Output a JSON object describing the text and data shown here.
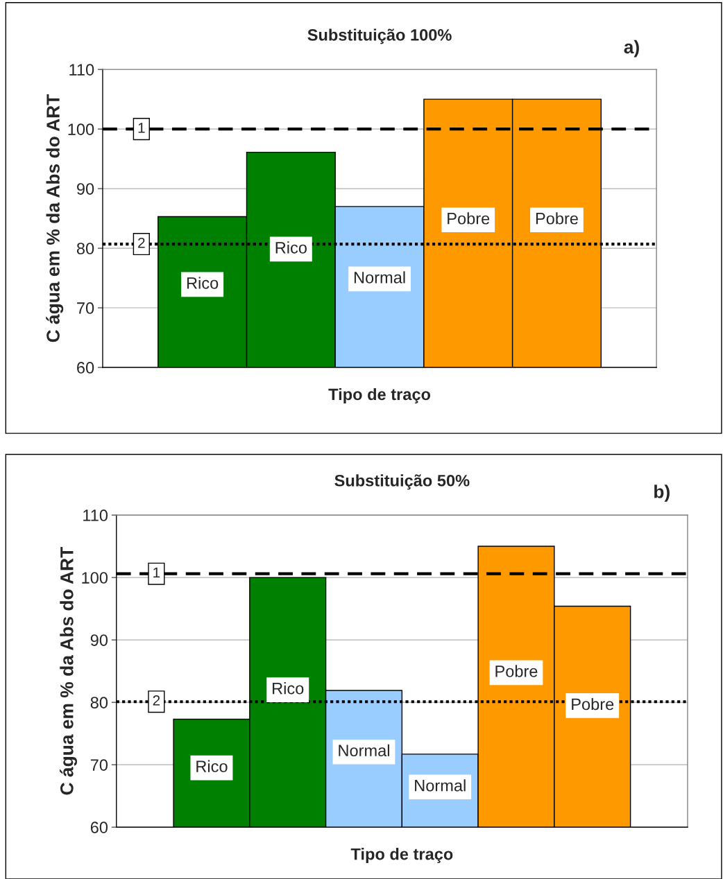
{
  "chart_data": [
    {
      "type": "bar",
      "title": "Substituição 100%",
      "xlabel": "Tipo de traço",
      "ylabel": "C água em % da Abs do ART",
      "categories": [
        null
      ],
      "series": [
        {
          "name": "Rico",
          "color": "#008000",
          "values": [
            85.3
          ]
        },
        {
          "name": "Rico",
          "color": "#008000",
          "values": [
            96.1
          ]
        },
        {
          "name": "Normal",
          "color": "#99ccff",
          "values": [
            87
          ]
        },
        {
          "name": "Pobre",
          "color": "#ff9900",
          "values": [
            105
          ]
        },
        {
          "name": "Pobre",
          "color": "#ff9900",
          "values": [
            105
          ]
        }
      ],
      "ylim": [
        60,
        110
      ],
      "yticks": [
        60,
        70,
        80,
        90,
        100,
        110
      ],
      "grid": "y",
      "legend": false,
      "ref_lines": [
        {
          "axis": "y",
          "value": 100,
          "line_style": "dashed",
          "color": "#000000"
        },
        {
          "axis": "y",
          "value": 80.7,
          "line_style": "dotted",
          "color": "#000000"
        }
      ],
      "annotations": [
        "a)",
        {
          "text": "1",
          "y": 100
        },
        {
          "text": "2",
          "y": 80.7
        }
      ]
    },
    {
      "type": "bar",
      "title": "Substituição 50%",
      "xlabel": "Tipo de traço",
      "ylabel": "C água em % da Abs do ART",
      "categories": [
        null
      ],
      "series": [
        {
          "name": "Rico",
          "color": "#008000",
          "values": [
            77.3
          ]
        },
        {
          "name": "Rico",
          "color": "#008000",
          "values": [
            100
          ]
        },
        {
          "name": "Normal",
          "color": "#99ccff",
          "values": [
            81.9
          ]
        },
        {
          "name": "Normal",
          "color": "#99ccff",
          "values": [
            71.7
          ]
        },
        {
          "name": "Pobre",
          "color": "#ff9900",
          "values": [
            105
          ]
        },
        {
          "name": "Pobre",
          "color": "#ff9900",
          "values": [
            95.4
          ]
        }
      ],
      "ylim": [
        60,
        110
      ],
      "yticks": [
        60,
        70,
        80,
        90,
        100,
        110
      ],
      "grid": "y",
      "legend": false,
      "ref_lines": [
        {
          "axis": "y",
          "value": 100.6,
          "line_style": "dashed",
          "color": "#000000"
        },
        {
          "axis": "y",
          "value": 80.1,
          "line_style": "dotted",
          "color": "#000000"
        }
      ],
      "annotations": [
        "b)",
        {
          "text": "1",
          "y": 100.6
        },
        {
          "text": "2",
          "y": 80.1
        }
      ]
    }
  ]
}
